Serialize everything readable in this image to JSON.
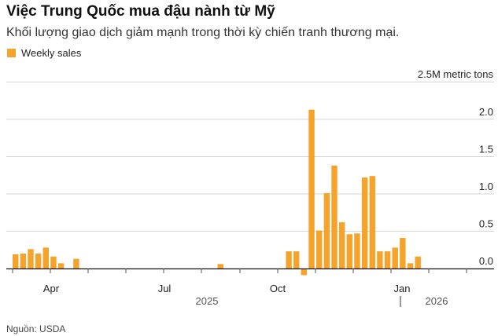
{
  "header": {
    "title": "Việc Trung Quốc mua đậu nành từ Mỹ",
    "subtitle": "Khối lượng giao dịch giảm mạnh trong thời kỳ chiến tranh thương mại."
  },
  "legend": {
    "label": "Weekly sales",
    "color": "#f5a32b"
  },
  "footer": {
    "source": "Nguồn: USDA"
  },
  "chart_data": {
    "type": "bar",
    "unit_label": "2.5M metric tons",
    "yticks": [
      "2.0",
      "1.5",
      "1.0",
      "0.5",
      "0.0"
    ],
    "ylim": [
      -0.1,
      2.5
    ],
    "grid": true,
    "legend_position": "top-left",
    "x_month_labels": [
      "Apr",
      "Jul",
      "Oct",
      "Jan"
    ],
    "x_year_labels": [
      "2025",
      "2026"
    ],
    "series": [
      {
        "name": "Weekly sales",
        "color": "#f5a32b",
        "values": [
          0.19,
          0.2,
          0.26,
          0.2,
          0.28,
          0.16,
          0.07,
          0,
          0.13,
          0,
          0,
          0,
          0,
          0,
          0,
          0,
          0,
          0,
          0,
          0,
          0,
          0,
          0,
          0,
          0,
          0,
          0,
          0.06,
          0,
          0,
          0,
          0,
          0,
          0,
          0,
          0,
          0.23,
          0.23,
          -0.09,
          2.13,
          0.51,
          1.01,
          1.38,
          0.62,
          0.46,
          0.47,
          1.22,
          1.24,
          0.23,
          0.23,
          0.28,
          0.41,
          0.07,
          0.16
        ]
      }
    ]
  }
}
